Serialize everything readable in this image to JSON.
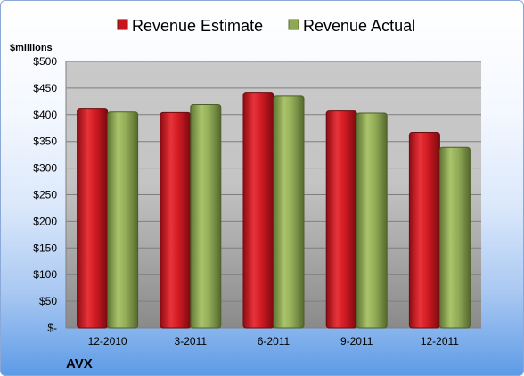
{
  "chart_data": {
    "type": "bar",
    "ylabel": "$millions",
    "footer_label": "AVX",
    "categories": [
      "12-2010",
      "3-2011",
      "6-2011",
      "9-2011",
      "12-2011"
    ],
    "series": [
      {
        "name": "Revenue Estimate",
        "values": [
          412,
          404,
          442,
          407,
          367
        ],
        "color": "#c8141c"
      },
      {
        "name": "Revenue Actual",
        "values": [
          405,
          419,
          435,
          403,
          339
        ],
        "color": "#8fa855"
      }
    ],
    "ylim": [
      0,
      500
    ],
    "yticks": [
      0,
      50,
      100,
      150,
      200,
      250,
      300,
      350,
      400,
      450,
      500
    ],
    "ytick_labels": [
      "$-",
      "$50",
      "$100",
      "$150",
      "$200",
      "$250",
      "$300",
      "$350",
      "$400",
      "$450",
      "$500"
    ],
    "grid": true,
    "legend_position": "top"
  }
}
